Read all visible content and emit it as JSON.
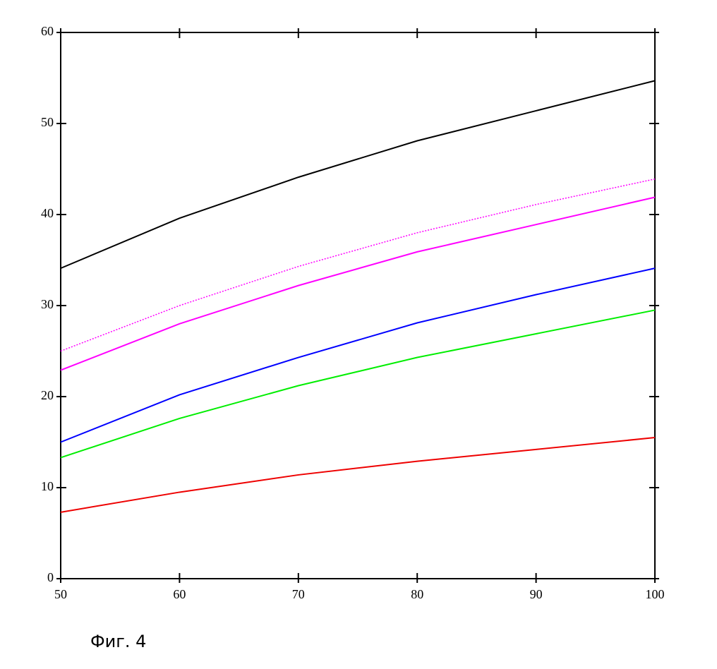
{
  "chart_data": {
    "type": "line",
    "x": [
      50,
      60,
      70,
      80,
      90,
      100
    ],
    "series": [
      {
        "color": "#000000",
        "values": [
          34.1,
          39.6,
          44.1,
          48.1,
          51.4,
          54.7
        ]
      },
      {
        "color": "#ff00ff",
        "style": "dotted",
        "values": [
          25.0,
          30.0,
          34.3,
          38.0,
          41.1,
          43.9
        ]
      },
      {
        "color": "#ff00ff",
        "values": [
          22.9,
          28.0,
          32.2,
          35.9,
          38.9,
          41.9
        ]
      },
      {
        "color": "#0000ff",
        "values": [
          15.0,
          20.2,
          24.3,
          28.1,
          31.2,
          34.1
        ]
      },
      {
        "color": "#00ee00",
        "values": [
          13.3,
          17.6,
          21.2,
          24.3,
          26.9,
          29.5
        ]
      },
      {
        "color": "#ee0000",
        "values": [
          7.3,
          9.5,
          11.4,
          12.9,
          14.2,
          15.5
        ]
      }
    ],
    "xlim": [
      50,
      100
    ],
    "xticks": [
      50,
      60,
      70,
      80,
      90,
      100
    ],
    "ylim": [
      0,
      60
    ],
    "yticks": [
      0,
      10,
      20,
      30,
      40,
      50,
      60
    ],
    "caption": "Фиг. 4"
  }
}
